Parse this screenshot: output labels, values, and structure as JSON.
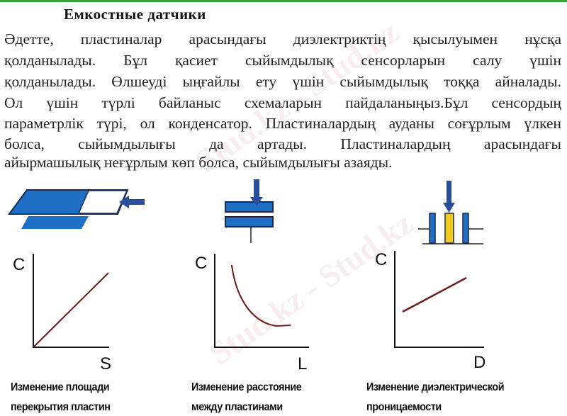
{
  "title": "Емкостные датчики",
  "paragraph_lines": [
    "Әдетте, пластиналар арасындағы диэлектриктің қысылуымен нұсқа",
    "қолданылады. Бұл қасиет сыйымдылық сенсорларын салу үшін",
    "қолданылады. Өлшеуді ыңғайлы ету үшін сыйымдылық тоққа айналады.",
    "Ол үшін түрлі байланыс схемаларын пайдаланыңыз.Бұл сенсордың",
    "параметрлік түрі, ол конденсатор. Пластиналардың ауданы соғұрлым үлкен",
    "болса, сыйымдылығы да артады. Пластиналардың арасындағы",
    "айырмашылық неғұрлым көп болса, сыйымдылығы азаяды."
  ],
  "watermark": "Stud.kz - Stud.kz",
  "colors": {
    "plate_blue": "#1f6fc4",
    "dielectric_yellow": "#f2cc1c",
    "curve": "#6b1a1a",
    "arrow": "#2a4f9a"
  },
  "graphs": [
    {
      "y_label": "C",
      "x_label": "S",
      "caption_lines": [
        "Изменение площади",
        "перекрытия пластин"
      ]
    },
    {
      "y_label": "C",
      "x_label": "L",
      "caption_lines": [
        "Изменение расстояние",
        "между пластинами"
      ]
    },
    {
      "y_label": "C",
      "x_label": "D",
      "caption_lines": [
        "Изменение диэлектрической",
        "проницаемости"
      ]
    }
  ]
}
